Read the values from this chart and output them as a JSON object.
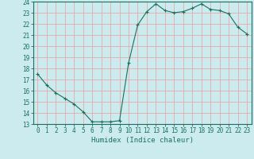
{
  "x": [
    0,
    1,
    2,
    3,
    4,
    5,
    6,
    7,
    8,
    9,
    10,
    11,
    12,
    13,
    14,
    15,
    16,
    17,
    18,
    19,
    20,
    21,
    22,
    23
  ],
  "y": [
    17.5,
    16.5,
    15.8,
    15.3,
    14.8,
    14.1,
    13.2,
    13.2,
    13.2,
    13.3,
    18.5,
    21.9,
    23.1,
    23.8,
    23.2,
    23.0,
    23.1,
    23.4,
    23.8,
    23.3,
    23.2,
    22.9,
    21.7,
    21.1
  ],
  "line_color": "#1a7060",
  "marker": "+",
  "marker_size": 3,
  "bg_color": "#ccebee",
  "grid_color": "#e8aaaa",
  "xlabel": "Humidex (Indice chaleur)",
  "ylabel": "",
  "xlim": [
    -0.5,
    23.5
  ],
  "ylim": [
    13,
    24
  ],
  "yticks": [
    13,
    14,
    15,
    16,
    17,
    18,
    19,
    20,
    21,
    22,
    23,
    24
  ],
  "xticks": [
    0,
    1,
    2,
    3,
    4,
    5,
    6,
    7,
    8,
    9,
    10,
    11,
    12,
    13,
    14,
    15,
    16,
    17,
    18,
    19,
    20,
    21,
    22,
    23
  ],
  "xtick_labels": [
    "0",
    "1",
    "2",
    "3",
    "4",
    "5",
    "6",
    "7",
    "8",
    "9",
    "10",
    "11",
    "12",
    "13",
    "14",
    "15",
    "16",
    "17",
    "18",
    "19",
    "20",
    "21",
    "22",
    "23"
  ],
  "label_fontsize": 6.5,
  "tick_fontsize": 5.5
}
